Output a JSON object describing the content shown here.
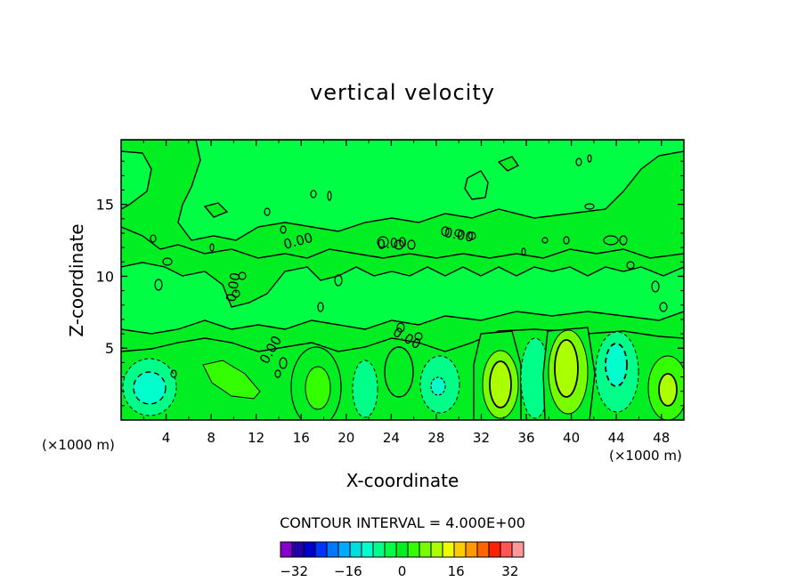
{
  "chart_data": {
    "type": "contour",
    "title": "vertical velocity",
    "xlabel": "X-coordinate",
    "ylabel": "Z-coordinate",
    "x_units": "(×1000 m)",
    "xlim": [
      0,
      50
    ],
    "ylim": [
      0,
      19.5
    ],
    "x_ticks": [
      4,
      8,
      12,
      16,
      20,
      24,
      28,
      32,
      36,
      40,
      44,
      48
    ],
    "y_ticks": [
      5,
      10,
      15
    ],
    "contour_interval_text": "CONTOUR INTERVAL = 4.000E+00",
    "contour_levels": [
      "0.00",
      "0.00",
      "0.00",
      "0.00",
      "0.00",
      "0.00"
    ],
    "colorbar": {
      "min": -36,
      "max": 36,
      "step": 4,
      "tick_values": [
        -32,
        -16,
        0,
        16,
        32
      ],
      "tick_labels": [
        "−32",
        "−16",
        "0",
        "16",
        "32"
      ],
      "colors": [
        "#8800cc",
        "#2200aa",
        "#0000cc",
        "#0033ff",
        "#0077ff",
        "#00aaff",
        "#00dddd",
        "#00ffcc",
        "#00ff88",
        "#00ff44",
        "#00ee22",
        "#33ff00",
        "#77ff00",
        "#aaff00",
        "#eeff00",
        "#ffcc00",
        "#ff9900",
        "#ff6600",
        "#ff2200",
        "#ff5555",
        "#ff9999"
      ]
    },
    "features": [
      {
        "kind": "min",
        "x": 2.5,
        "z": 2.5,
        "value_range": [
          -12,
          -8
        ]
      },
      {
        "kind": "max",
        "x": 10,
        "z": 3,
        "value_range": [
          4,
          8
        ]
      },
      {
        "kind": "max",
        "x": 17.5,
        "z": 2.5,
        "value_range": [
          4,
          8
        ]
      },
      {
        "kind": "min",
        "x": 21.5,
        "z": 2.5,
        "value_range": [
          -8,
          -4
        ]
      },
      {
        "kind": "max",
        "x": 24.5,
        "z": 3.5,
        "value_range": [
          0,
          4
        ]
      },
      {
        "kind": "min",
        "x": 28.5,
        "z": 2.5,
        "value_range": [
          -12,
          -8
        ]
      },
      {
        "kind": "max",
        "x": 33.5,
        "z": 3,
        "value_range": [
          12,
          16
        ]
      },
      {
        "kind": "min",
        "x": 36.5,
        "z": 3,
        "value_range": [
          -8,
          -4
        ]
      },
      {
        "kind": "max",
        "x": 39.5,
        "z": 3.5,
        "value_range": [
          12,
          16
        ]
      },
      {
        "kind": "min",
        "x": 43.5,
        "z": 3.5,
        "value_range": [
          -12,
          -8
        ]
      },
      {
        "kind": "max",
        "x": 48,
        "z": 2.5,
        "value_range": [
          8,
          12
        ]
      }
    ]
  }
}
